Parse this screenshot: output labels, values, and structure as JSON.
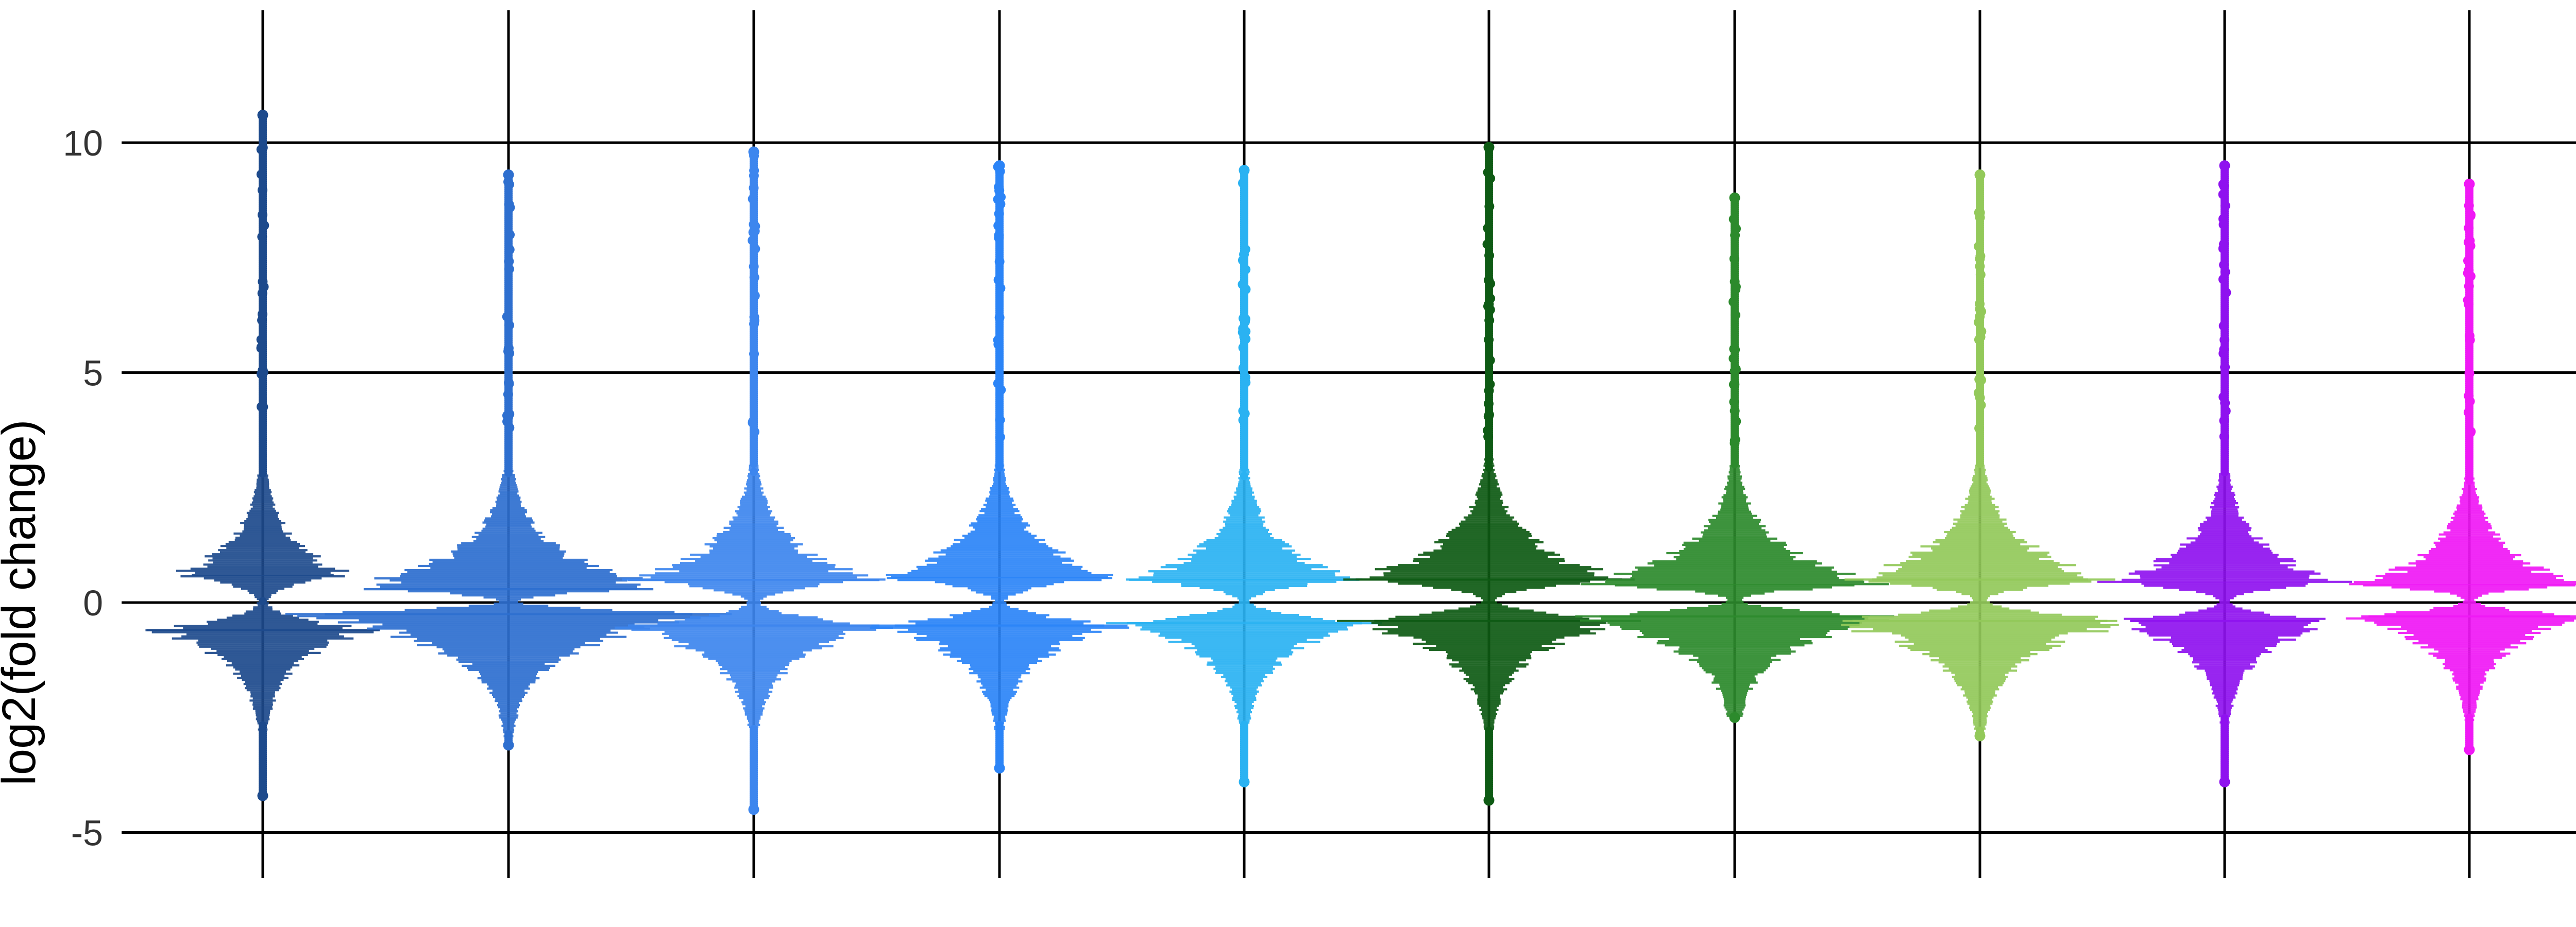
{
  "chart_data": {
    "type": "beeswarm",
    "ylabel": "log2(fold change)",
    "ylim": [
      -6,
      13
    ],
    "yticks": [
      -5,
      0,
      5,
      10
    ],
    "ytick_labels": [
      "-5",
      "0",
      "5",
      "10"
    ],
    "grid": true,
    "legend": "none",
    "series": [
      {
        "color": "#1d4a8c",
        "min": -4.2,
        "max": 10.6,
        "upper_peak": 0.6,
        "lower_peak": -0.6,
        "upper_width": 0.34,
        "lower_width": 0.42
      },
      {
        "color": "#2e6fcf",
        "min": -3.1,
        "max": 9.3,
        "upper_peak": 0.3,
        "lower_peak": -0.25,
        "upper_width": 0.62,
        "lower_width": 0.85
      },
      {
        "color": "#3d86ee",
        "min": -4.5,
        "max": 9.8,
        "upper_peak": 0.5,
        "lower_peak": -0.5,
        "upper_width": 0.46,
        "lower_width": 0.53
      },
      {
        "color": "#2b84f7",
        "min": -3.6,
        "max": 9.5,
        "upper_peak": 0.55,
        "lower_peak": -0.5,
        "upper_width": 0.46,
        "lower_width": 0.49
      },
      {
        "color": "#2ab2f2",
        "min": -3.9,
        "max": 9.4,
        "upper_peak": 0.5,
        "lower_peak": -0.45,
        "upper_width": 0.43,
        "lower_width": 0.48
      },
      {
        "color": "#0e5a14",
        "min": -4.3,
        "max": 9.9,
        "upper_peak": 0.5,
        "lower_peak": -0.4,
        "upper_width": 0.54,
        "lower_width": 0.55
      },
      {
        "color": "#2c8a2c",
        "min": -2.5,
        "max": 8.8,
        "upper_peak": 0.4,
        "lower_peak": -0.3,
        "upper_width": 0.58,
        "lower_width": 0.65
      },
      {
        "color": "#93c95a",
        "min": -2.9,
        "max": 9.3,
        "upper_peak": 0.5,
        "lower_peak": -0.4,
        "upper_width": 0.52,
        "lower_width": 0.62
      },
      {
        "color": "#8f12ef",
        "min": -3.9,
        "max": 9.5,
        "upper_peak": 0.45,
        "lower_peak": -0.4,
        "upper_width": 0.45,
        "lower_width": 0.45
      },
      {
        "color": "#f018f5",
        "min": -3.2,
        "max": 9.1,
        "upper_peak": 0.4,
        "lower_peak": -0.3,
        "upper_width": 0.43,
        "lower_width": 0.46
      }
    ]
  }
}
